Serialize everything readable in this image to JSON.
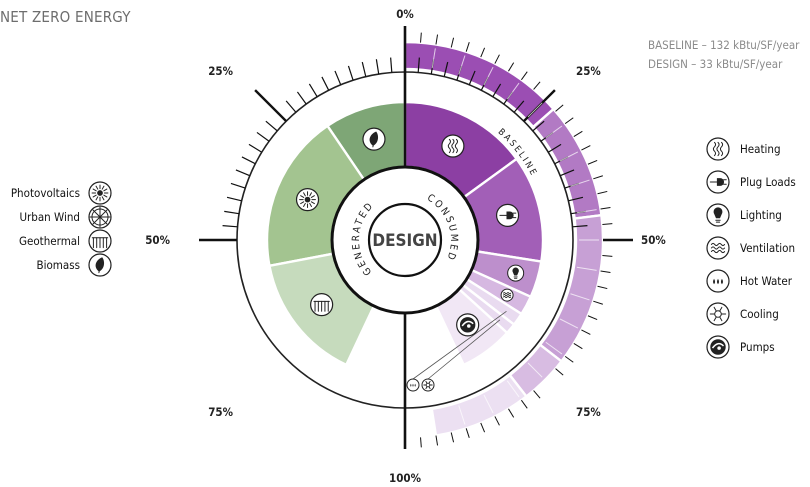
{
  "title": "NET ZERO ENERGY",
  "stats": {
    "baseline": "BASELINE – 132 kBtu/SF/year",
    "design": "DESIGN – 33 kBtu/SF/year"
  },
  "chart_data": {
    "type": "radial-stacked",
    "center_label": "DESIGN",
    "ring_labels": {
      "generated": "GENERATED",
      "consumed": "CONSUMED",
      "baseline": "BASELINE"
    },
    "percent_ticks": [
      "0%",
      "25%",
      "50%",
      "75%",
      "100%"
    ],
    "generated": [
      {
        "name": "Biomass",
        "value": 19,
        "color": "#7ea676",
        "icon": "leaf"
      },
      {
        "name": "Photovoltaics",
        "value": 37,
        "color": "#a3c490",
        "icon": "sun"
      },
      {
        "name": "Geothermal",
        "value": 30,
        "color": "#c6dbbd",
        "icon": "geothermal"
      }
    ],
    "consumed": [
      {
        "name": "Heating",
        "value": 30,
        "color": "#8c3fa3",
        "icon": "heating"
      },
      {
        "name": "Plug Loads",
        "value": 25,
        "color": "#a25fb7",
        "icon": "plug"
      },
      {
        "name": "Lighting",
        "value": 8.5,
        "color": "#bd8fcc",
        "icon": "lighting"
      },
      {
        "name": "Ventilation",
        "value": 4.5,
        "color": "#d6b8e1",
        "icon": "ventilation"
      },
      {
        "name": "Hot Water",
        "value": 3,
        "color": "#e9dbf0",
        "icon": "hot-water"
      },
      {
        "name": "Cooling",
        "value": 2.5,
        "color": "#e9dbf0",
        "icon": "cooling"
      },
      {
        "name": "Pumps",
        "value": 12.5,
        "color": "#f1e7f5",
        "icon": "pumps"
      }
    ],
    "baseline": [
      {
        "name": "Heating",
        "value": 27,
        "color": "#9b4eb3"
      },
      {
        "name": "Plug Loads",
        "value": 19,
        "color": "#b27ac4"
      },
      {
        "name": "Lighting",
        "value": 25,
        "color": "#c7a0d5"
      },
      {
        "name": "Ventilation",
        "value": 8,
        "color": "#d8bce2"
      },
      {
        "name": "Pumps",
        "value": 16,
        "color": "#ece0f2"
      }
    ],
    "legend_generated": [
      {
        "label": "Photovoltaics",
        "icon": "sun"
      },
      {
        "label": "Urban Wind",
        "icon": "wind"
      },
      {
        "label": "Geothermal",
        "icon": "geothermal"
      },
      {
        "label": "Biomass",
        "icon": "leaf"
      }
    ],
    "legend_consumed": [
      {
        "label": "Heating",
        "icon": "heating"
      },
      {
        "label": "Plug Loads",
        "icon": "plug"
      },
      {
        "label": "Lighting",
        "icon": "lighting"
      },
      {
        "label": "Ventilation",
        "icon": "ventilation"
      },
      {
        "label": "Hot Water",
        "icon": "hot-water"
      },
      {
        "label": "Cooling",
        "icon": "cooling"
      },
      {
        "label": "Pumps",
        "icon": "pumps"
      }
    ]
  }
}
